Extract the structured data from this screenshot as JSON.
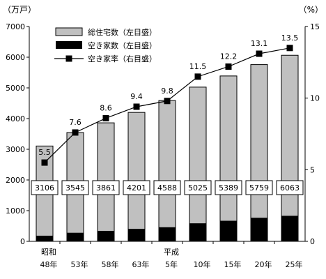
{
  "chart_data": {
    "type": "bar+line",
    "categories": [
      [
        "昭和",
        "48年"
      ],
      [
        "",
        "53年"
      ],
      [
        "",
        "58年"
      ],
      [
        "",
        "63年"
      ],
      [
        "平成",
        "5年"
      ],
      [
        "",
        "10年"
      ],
      [
        "",
        "15年"
      ],
      [
        "",
        "20年"
      ],
      [
        "",
        "25年"
      ]
    ],
    "y_left": {
      "unit_label": "（万戸）",
      "range": [
        0,
        7000
      ],
      "ticks": [
        0,
        1000,
        2000,
        3000,
        4000,
        5000,
        6000,
        7000
      ]
    },
    "y_right": {
      "unit_label": "（%）",
      "range": [
        0,
        15
      ],
      "ticks": [
        0,
        5,
        10,
        15
      ]
    },
    "series": [
      {
        "name": "総住宅数（左目盛）",
        "kind": "bar",
        "axis": "left",
        "color": "#c0c0c0",
        "values": [
          3106,
          3545,
          3861,
          4201,
          4588,
          5025,
          5389,
          5759,
          6063
        ],
        "labels": [
          "3106",
          "3545",
          "3861",
          "4201",
          "4588",
          "5025",
          "5389",
          "5759",
          "6063"
        ]
      },
      {
        "name": "空き家数（左目盛）",
        "kind": "bar",
        "axis": "left",
        "color": "#000000",
        "values": [
          172,
          268,
          330,
          394,
          448,
          576,
          659,
          757,
          820
        ]
      },
      {
        "name": "空き家率（右目盛）",
        "kind": "line",
        "axis": "right",
        "color": "#000000",
        "values": [
          5.5,
          7.6,
          8.6,
          9.4,
          9.8,
          11.5,
          12.2,
          13.1,
          13.5
        ],
        "labels": [
          "5.5",
          "7.6",
          "8.6",
          "9.4",
          "9.8",
          "11.5",
          "12.2",
          "13.1",
          "13.5"
        ]
      }
    ],
    "legend_position": "top-left",
    "grid": false
  }
}
